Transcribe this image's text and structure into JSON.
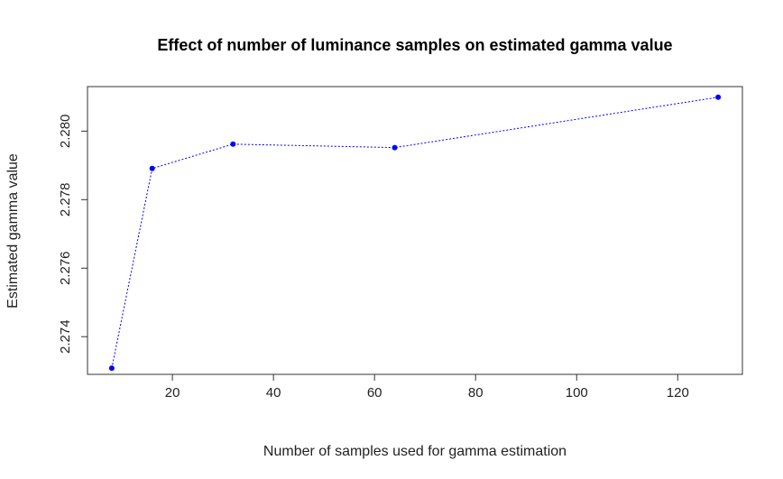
{
  "chart_data": {
    "type": "line",
    "title": "Effect of number of luminance samples on estimated gamma value",
    "xlabel": "Number of samples used for gamma estimation",
    "ylabel": "Estimated gamma value",
    "x": [
      8,
      16,
      32,
      64,
      128
    ],
    "values": [
      2.27308,
      2.27891,
      2.27962,
      2.27952,
      2.28099
    ],
    "xlim": [
      3.2,
      132.8
    ],
    "ylim": [
      2.2729,
      2.2813
    ],
    "xticks": [
      "20",
      "40",
      "60",
      "80",
      "100",
      "120"
    ],
    "yticks": [
      "2.274",
      "2.276",
      "2.278",
      "2.280"
    ],
    "color": "#0000ff",
    "line_style": "dotted",
    "grid": false
  }
}
